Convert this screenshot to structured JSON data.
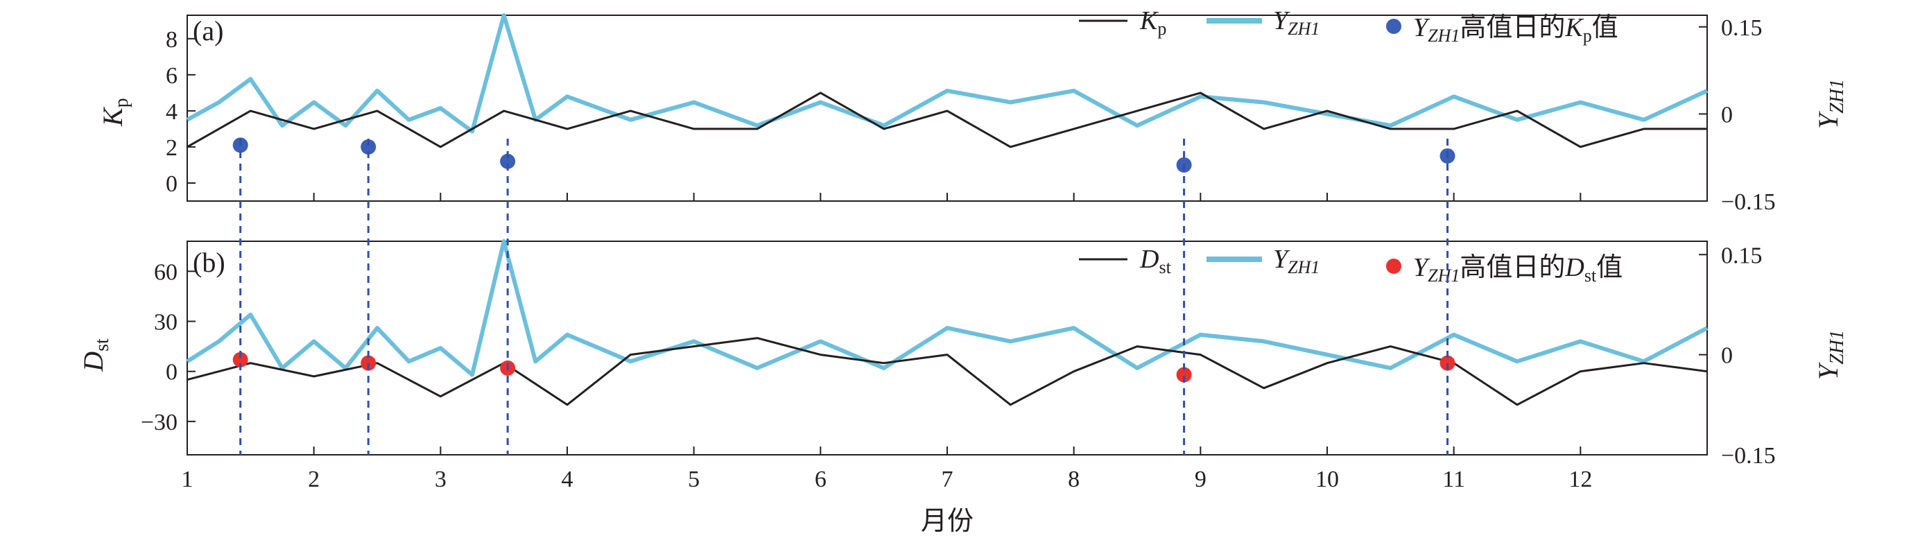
{
  "chart_data": {
    "type": "line",
    "x_axis": {
      "label": "月份",
      "min": 1,
      "max": 13,
      "ticks": [
        1,
        2,
        3,
        4,
        5,
        6,
        7,
        8,
        9,
        10,
        11,
        12
      ]
    },
    "panels": [
      {
        "panel_label": "(a)",
        "left_axis": {
          "label": "Kp",
          "label_base": "K",
          "label_sub": "p",
          "ylim": [
            -1,
            9.3
          ],
          "ticks": [
            0,
            2,
            4,
            6,
            8
          ]
        },
        "right_axis": {
          "label": "YZH1",
          "label_base": "Y",
          "label_sub": "ZH1",
          "ylim": [
            -0.15,
            0.17
          ],
          "ticks": [
            -0.15,
            0,
            0.15
          ],
          "tick_labels": [
            "−0.15",
            "0",
            "0.15"
          ]
        },
        "series": [
          {
            "name": "Kp",
            "name_base": "K",
            "name_sub": "p",
            "color": "#231f20",
            "axis": "left",
            "x": [
              1.0,
              1.5,
              2.0,
              2.5,
              3.0,
              3.5,
              4.0,
              4.5,
              5.0,
              5.5,
              6.0,
              6.5,
              7.0,
              7.5,
              8.0,
              8.5,
              9.0,
              9.5,
              10.0,
              10.5,
              11.0,
              11.5,
              12.0,
              12.5,
              13.0
            ],
            "y": [
              2,
              4,
              3,
              4,
              2,
              4,
              3,
              4,
              3,
              3,
              5,
              3,
              4,
              2,
              3,
              4,
              5,
              3,
              4,
              3,
              3,
              4,
              2,
              3,
              3
            ]
          },
          {
            "name": "YZH1",
            "name_base": "Y",
            "name_sub": "ZH1",
            "color": "#6bbfdc",
            "axis": "right",
            "x": [
              1.0,
              1.25,
              1.5,
              1.75,
              2.0,
              2.25,
              2.5,
              2.75,
              3.0,
              3.25,
              3.5,
              3.75,
              4.0,
              4.5,
              5.0,
              5.5,
              6.0,
              6.5,
              7.0,
              7.5,
              8.0,
              8.5,
              9.0,
              9.5,
              10.0,
              10.5,
              11.0,
              11.5,
              12.0,
              12.5,
              13.0
            ],
            "y": [
              -0.01,
              0.02,
              0.06,
              -0.02,
              0.02,
              -0.02,
              0.04,
              -0.01,
              0.01,
              -0.03,
              0.17,
              -0.01,
              0.03,
              -0.01,
              0.02,
              -0.02,
              0.02,
              -0.02,
              0.04,
              0.02,
              0.04,
              -0.02,
              0.03,
              0.02,
              0.0,
              -0.02,
              0.03,
              -0.01,
              0.02,
              -0.01,
              0.04
            ]
          },
          {
            "name": "YZH1 高值日的Kp值",
            "name_base": "Y",
            "name_sub": "ZH1",
            "name_mid": "高值日的",
            "name_base2": "K",
            "name_sub2": "p",
            "name_tail": "值",
            "color": "#3b5fb6",
            "type": "scatter",
            "axis": "left",
            "x": [
              1.42,
              2.43,
              3.53,
              8.87,
              10.95
            ],
            "y": [
              2.1,
              2.0,
              1.2,
              1.0,
              1.5
            ]
          }
        ],
        "legend": "top-right"
      },
      {
        "panel_label": "(b)",
        "left_axis": {
          "label": "Dst",
          "label_base": "D",
          "label_sub": "st",
          "ylim": [
            -50,
            78
          ],
          "ticks": [
            -30,
            0,
            30,
            60
          ],
          "tick_labels": [
            "−30",
            "0",
            "30",
            "60"
          ]
        },
        "right_axis": {
          "label": "YZH1",
          "label_base": "Y",
          "label_sub": "ZH1",
          "ylim": [
            -0.15,
            0.17
          ],
          "ticks": [
            -0.15,
            0,
            0.15
          ],
          "tick_labels": [
            "−0.15",
            "0",
            "0.15"
          ]
        },
        "series": [
          {
            "name": "Dst",
            "name_base": "D",
            "name_sub": "st",
            "color": "#231f20",
            "axis": "left",
            "x": [
              1.0,
              1.5,
              2.0,
              2.5,
              3.0,
              3.5,
              4.0,
              4.5,
              5.0,
              5.5,
              6.0,
              6.5,
              7.0,
              7.5,
              8.0,
              8.5,
              9.0,
              9.5,
              10.0,
              10.5,
              11.0,
              11.5,
              12.0,
              12.5,
              13.0
            ],
            "y": [
              -5,
              5,
              -3,
              5,
              -15,
              5,
              -20,
              10,
              15,
              20,
              10,
              5,
              10,
              -20,
              0,
              15,
              10,
              -10,
              5,
              15,
              5,
              -20,
              0,
              5,
              0
            ]
          },
          {
            "name": "YZH1",
            "name_base": "Y",
            "name_sub": "ZH1",
            "color": "#6bbfdc",
            "axis": "right",
            "x": [
              1.0,
              1.25,
              1.5,
              1.75,
              2.0,
              2.25,
              2.5,
              2.75,
              3.0,
              3.25,
              3.5,
              3.75,
              4.0,
              4.5,
              5.0,
              5.5,
              6.0,
              6.5,
              7.0,
              7.5,
              8.0,
              8.5,
              9.0,
              9.5,
              10.0,
              10.5,
              11.0,
              11.5,
              12.0,
              12.5,
              13.0
            ],
            "y": [
              -0.01,
              0.02,
              0.06,
              -0.02,
              0.02,
              -0.02,
              0.04,
              -0.01,
              0.01,
              -0.03,
              0.17,
              -0.01,
              0.03,
              -0.01,
              0.02,
              -0.02,
              0.02,
              -0.02,
              0.04,
              0.02,
              0.04,
              -0.02,
              0.03,
              0.02,
              0.0,
              -0.02,
              0.03,
              -0.01,
              0.02,
              -0.01,
              0.04
            ]
          },
          {
            "name": "YZH1 高值日的Dst值",
            "name_base": "Y",
            "name_sub": "ZH1",
            "name_mid": "高值日的",
            "name_base2": "D",
            "name_sub2": "st",
            "name_tail": "值",
            "color": "#e8312f",
            "type": "scatter",
            "axis": "left",
            "x": [
              1.42,
              2.43,
              3.53,
              8.87,
              10.95
            ],
            "y": [
              7,
              5,
              2,
              -2,
              5
            ]
          }
        ],
        "legend": "top-right"
      }
    ],
    "high_value_days": [
      1.42,
      2.43,
      3.53,
      8.87,
      10.95
    ],
    "grid": false
  }
}
